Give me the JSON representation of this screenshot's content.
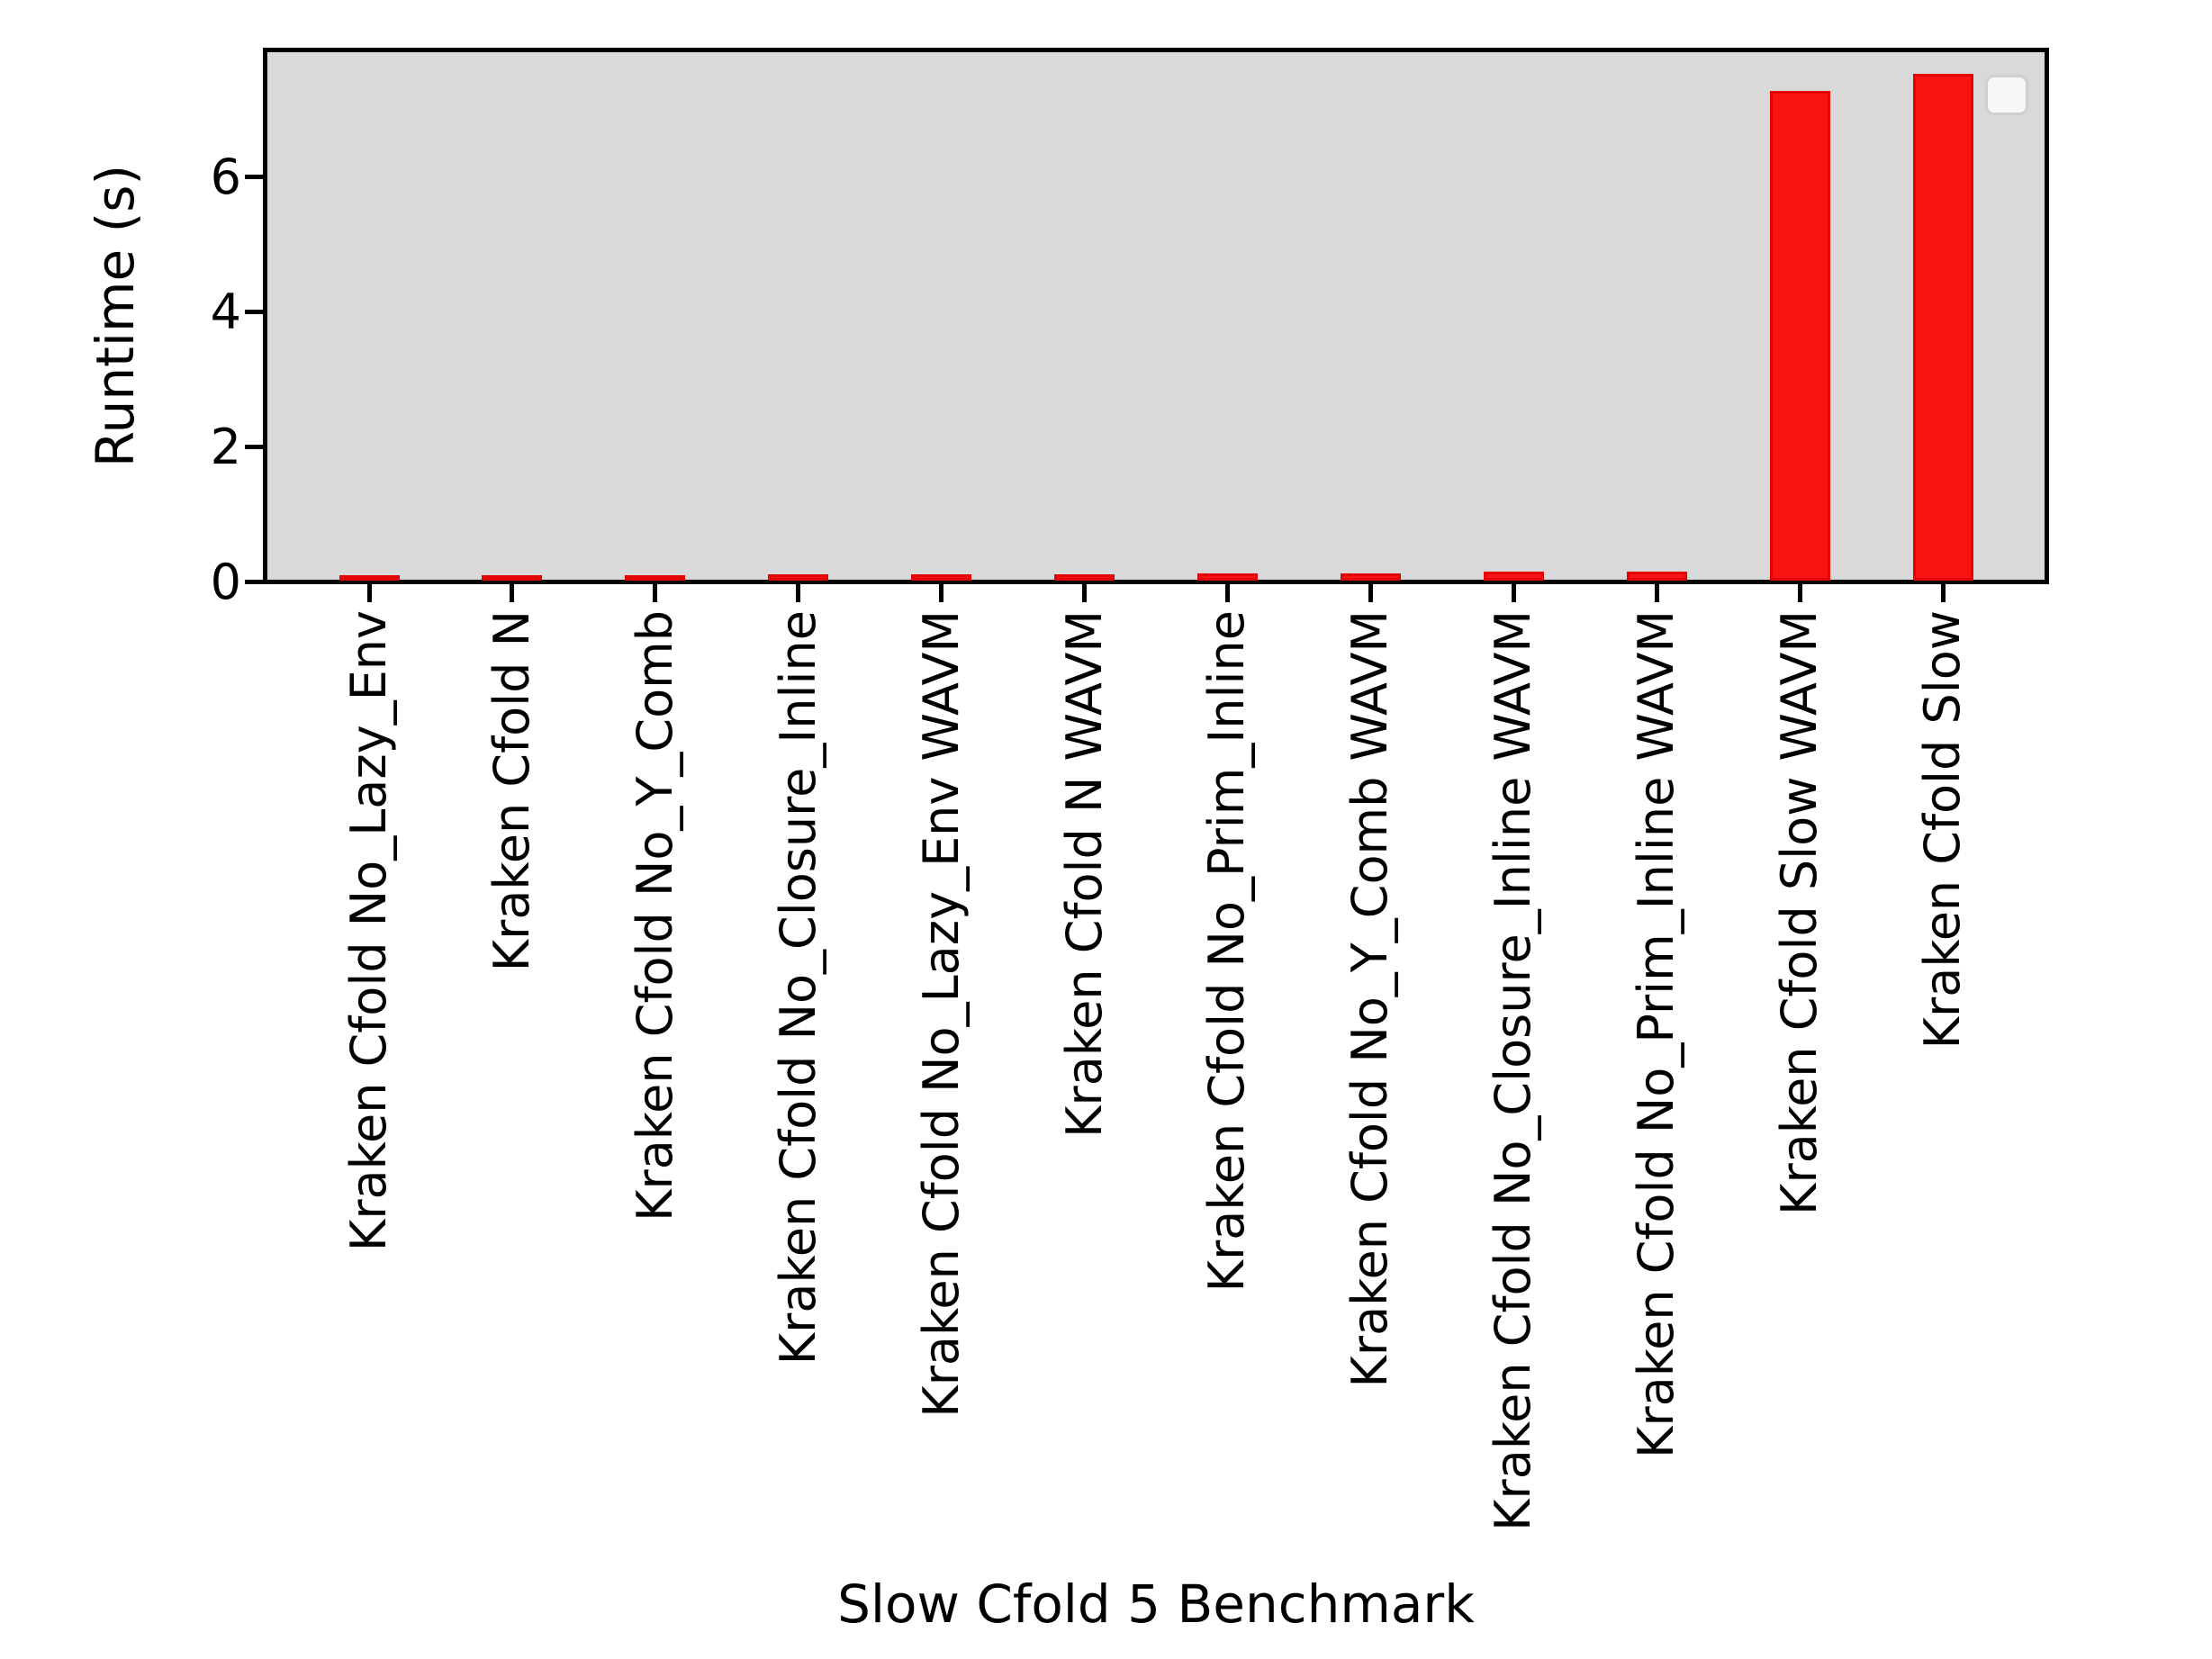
{
  "figure": {
    "background_color": "#ffffff",
    "plot_background_color": "#d9d9d9",
    "spine_color": "#000000"
  },
  "chart_data": {
    "type": "bar",
    "title": "",
    "xlabel": "Slow Cfold 5 Benchmark",
    "ylabel": "Runtime (s)",
    "categories": [
      "Kraken Cfold No_Lazy_Env",
      "Kraken Cfold N",
      "Kraken Cfold No_Y_Comb",
      "Kraken Cfold No_Closure_Inline",
      "Kraken Cfold No_Lazy_Env WAVM",
      "Kraken Cfold N WAVM",
      "Kraken Cfold No_Prim_Inline",
      "Kraken Cfold No_Y_Comb WAVM",
      "Kraken Cfold No_Closure_Inline WAVM",
      "Kraken Cfold No_Prim_Inline WAVM",
      "Kraken Cfold Slow WAVM",
      "Kraken Cfold Slow"
    ],
    "values": [
      0.08,
      0.08,
      0.07,
      0.1,
      0.1,
      0.1,
      0.11,
      0.11,
      0.13,
      0.14,
      7.26,
      7.51
    ],
    "ylim": [
      0,
      7.9
    ],
    "yticks": [
      0,
      2,
      4,
      6
    ],
    "xtick_rotation_deg": 90,
    "grid": false,
    "bar_color": "#fb1212",
    "bar_edge_color": "#e30505",
    "legend": {
      "position": "upper right",
      "entries": []
    }
  }
}
